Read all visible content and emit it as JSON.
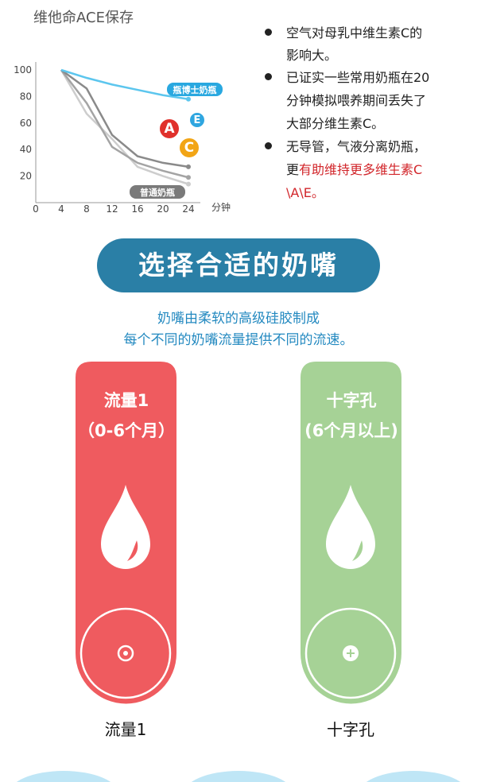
{
  "chart_data": {
    "type": "line",
    "title": "维他命ACE保存",
    "xlabel": "分钟",
    "x": [
      4,
      8,
      12,
      16,
      20,
      24
    ],
    "xlim": [
      0,
      24
    ],
    "xticks": [
      0,
      4,
      8,
      12,
      16,
      20,
      24
    ],
    "ylim": [
      0,
      100
    ],
    "yticks": [
      20,
      40,
      60,
      80,
      100
    ],
    "series": [
      {
        "name": "瓶博士奶瓶",
        "color": "#5cc6ee",
        "values": [
          100,
          94,
          89,
          85,
          81,
          78
        ]
      },
      {
        "name": "普通奶瓶",
        "color": "#8a8a8a",
        "values": [
          100,
          86,
          51,
          35,
          30,
          27
        ]
      },
      {
        "color": "#a4a4a4",
        "values": [
          100,
          75,
          42,
          30,
          24,
          19
        ]
      },
      {
        "color": "#cdcdcd",
        "values": [
          100,
          67,
          48,
          27,
          20,
          14
        ]
      }
    ],
    "badges": [
      "A",
      "E",
      "C"
    ]
  },
  "bullets": [
    {
      "lines": [
        "空气对母乳中维生素C的",
        "影响大。"
      ]
    },
    {
      "lines": [
        "已证实一些常用奶瓶在20",
        "分钟模拟喂养期间丢失了",
        "大部分维生素C。"
      ]
    },
    {
      "lines": [
        "无导管，气液分离奶瓶，",
        "更"
      ],
      "highlight": [
        "有助维持更多维生素C",
        "\\A\\E。"
      ]
    }
  ],
  "section": {
    "title": "选择合适的奶嘴",
    "subtitle": [
      "奶嘴由柔软的高级硅胶制成",
      "每个不同的奶嘴流量提供不同的流速。"
    ]
  },
  "nipples": [
    {
      "name": "流量1",
      "age": "（0-6个月）",
      "label": "流量1"
    },
    {
      "name": "十字孔",
      "age": "(6个月以上)",
      "label": "十字孔"
    }
  ]
}
